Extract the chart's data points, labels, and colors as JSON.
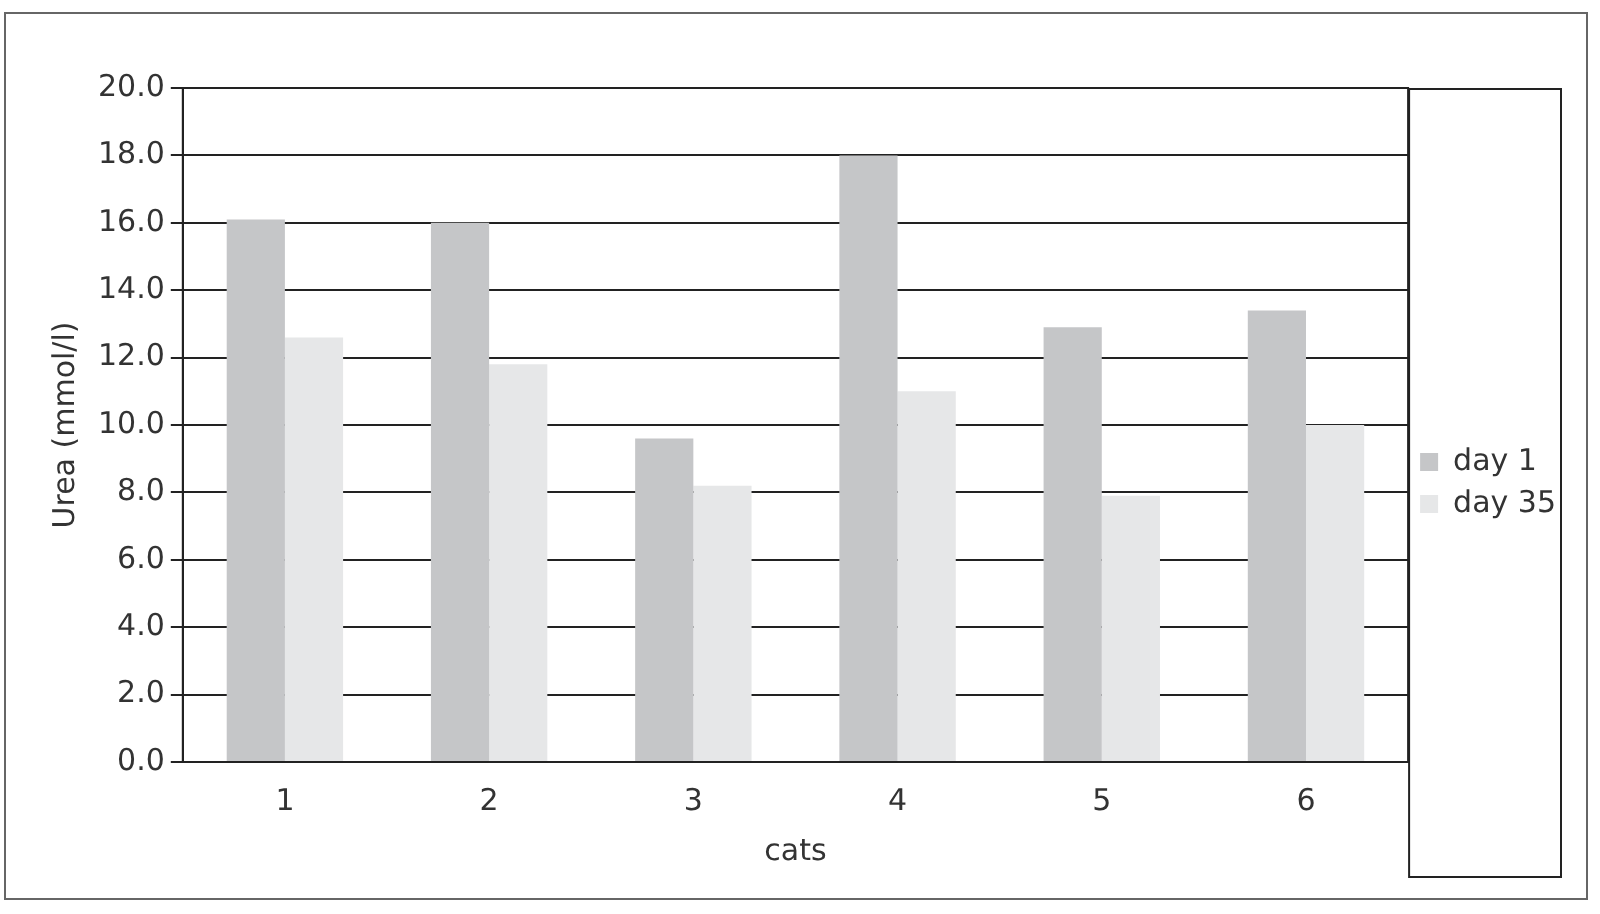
{
  "chart_data": {
    "type": "bar",
    "xlabel": "cats",
    "ylabel": "Urea (mmol/l)",
    "categories": [
      "1",
      "2",
      "3",
      "4",
      "5",
      "6"
    ],
    "series": [
      {
        "name": "day 1",
        "color": "#c5c6c8",
        "values": [
          16.1,
          16.0,
          9.6,
          18.0,
          12.9,
          13.4
        ]
      },
      {
        "name": "day 35",
        "color": "#e6e7e8",
        "values": [
          12.6,
          11.8,
          8.2,
          11.0,
          7.9,
          10.0
        ]
      }
    ],
    "ylim": [
      0,
      20
    ],
    "yticks": [
      {
        "value": 0,
        "label": "0.0"
      },
      {
        "value": 2,
        "label": "2.0"
      },
      {
        "value": 4,
        "label": "4.0"
      },
      {
        "value": 6,
        "label": "6.0"
      },
      {
        "value": 8,
        "label": "8.0"
      },
      {
        "value": 10,
        "label": "10.0"
      },
      {
        "value": 12,
        "label": "12.0"
      },
      {
        "value": 14,
        "label": "14.0"
      },
      {
        "value": 16,
        "label": "16.0"
      },
      {
        "value": 18,
        "label": "18.0"
      },
      {
        "value": 20,
        "label": "20.0"
      }
    ],
    "grid": "y",
    "legend": "right"
  }
}
